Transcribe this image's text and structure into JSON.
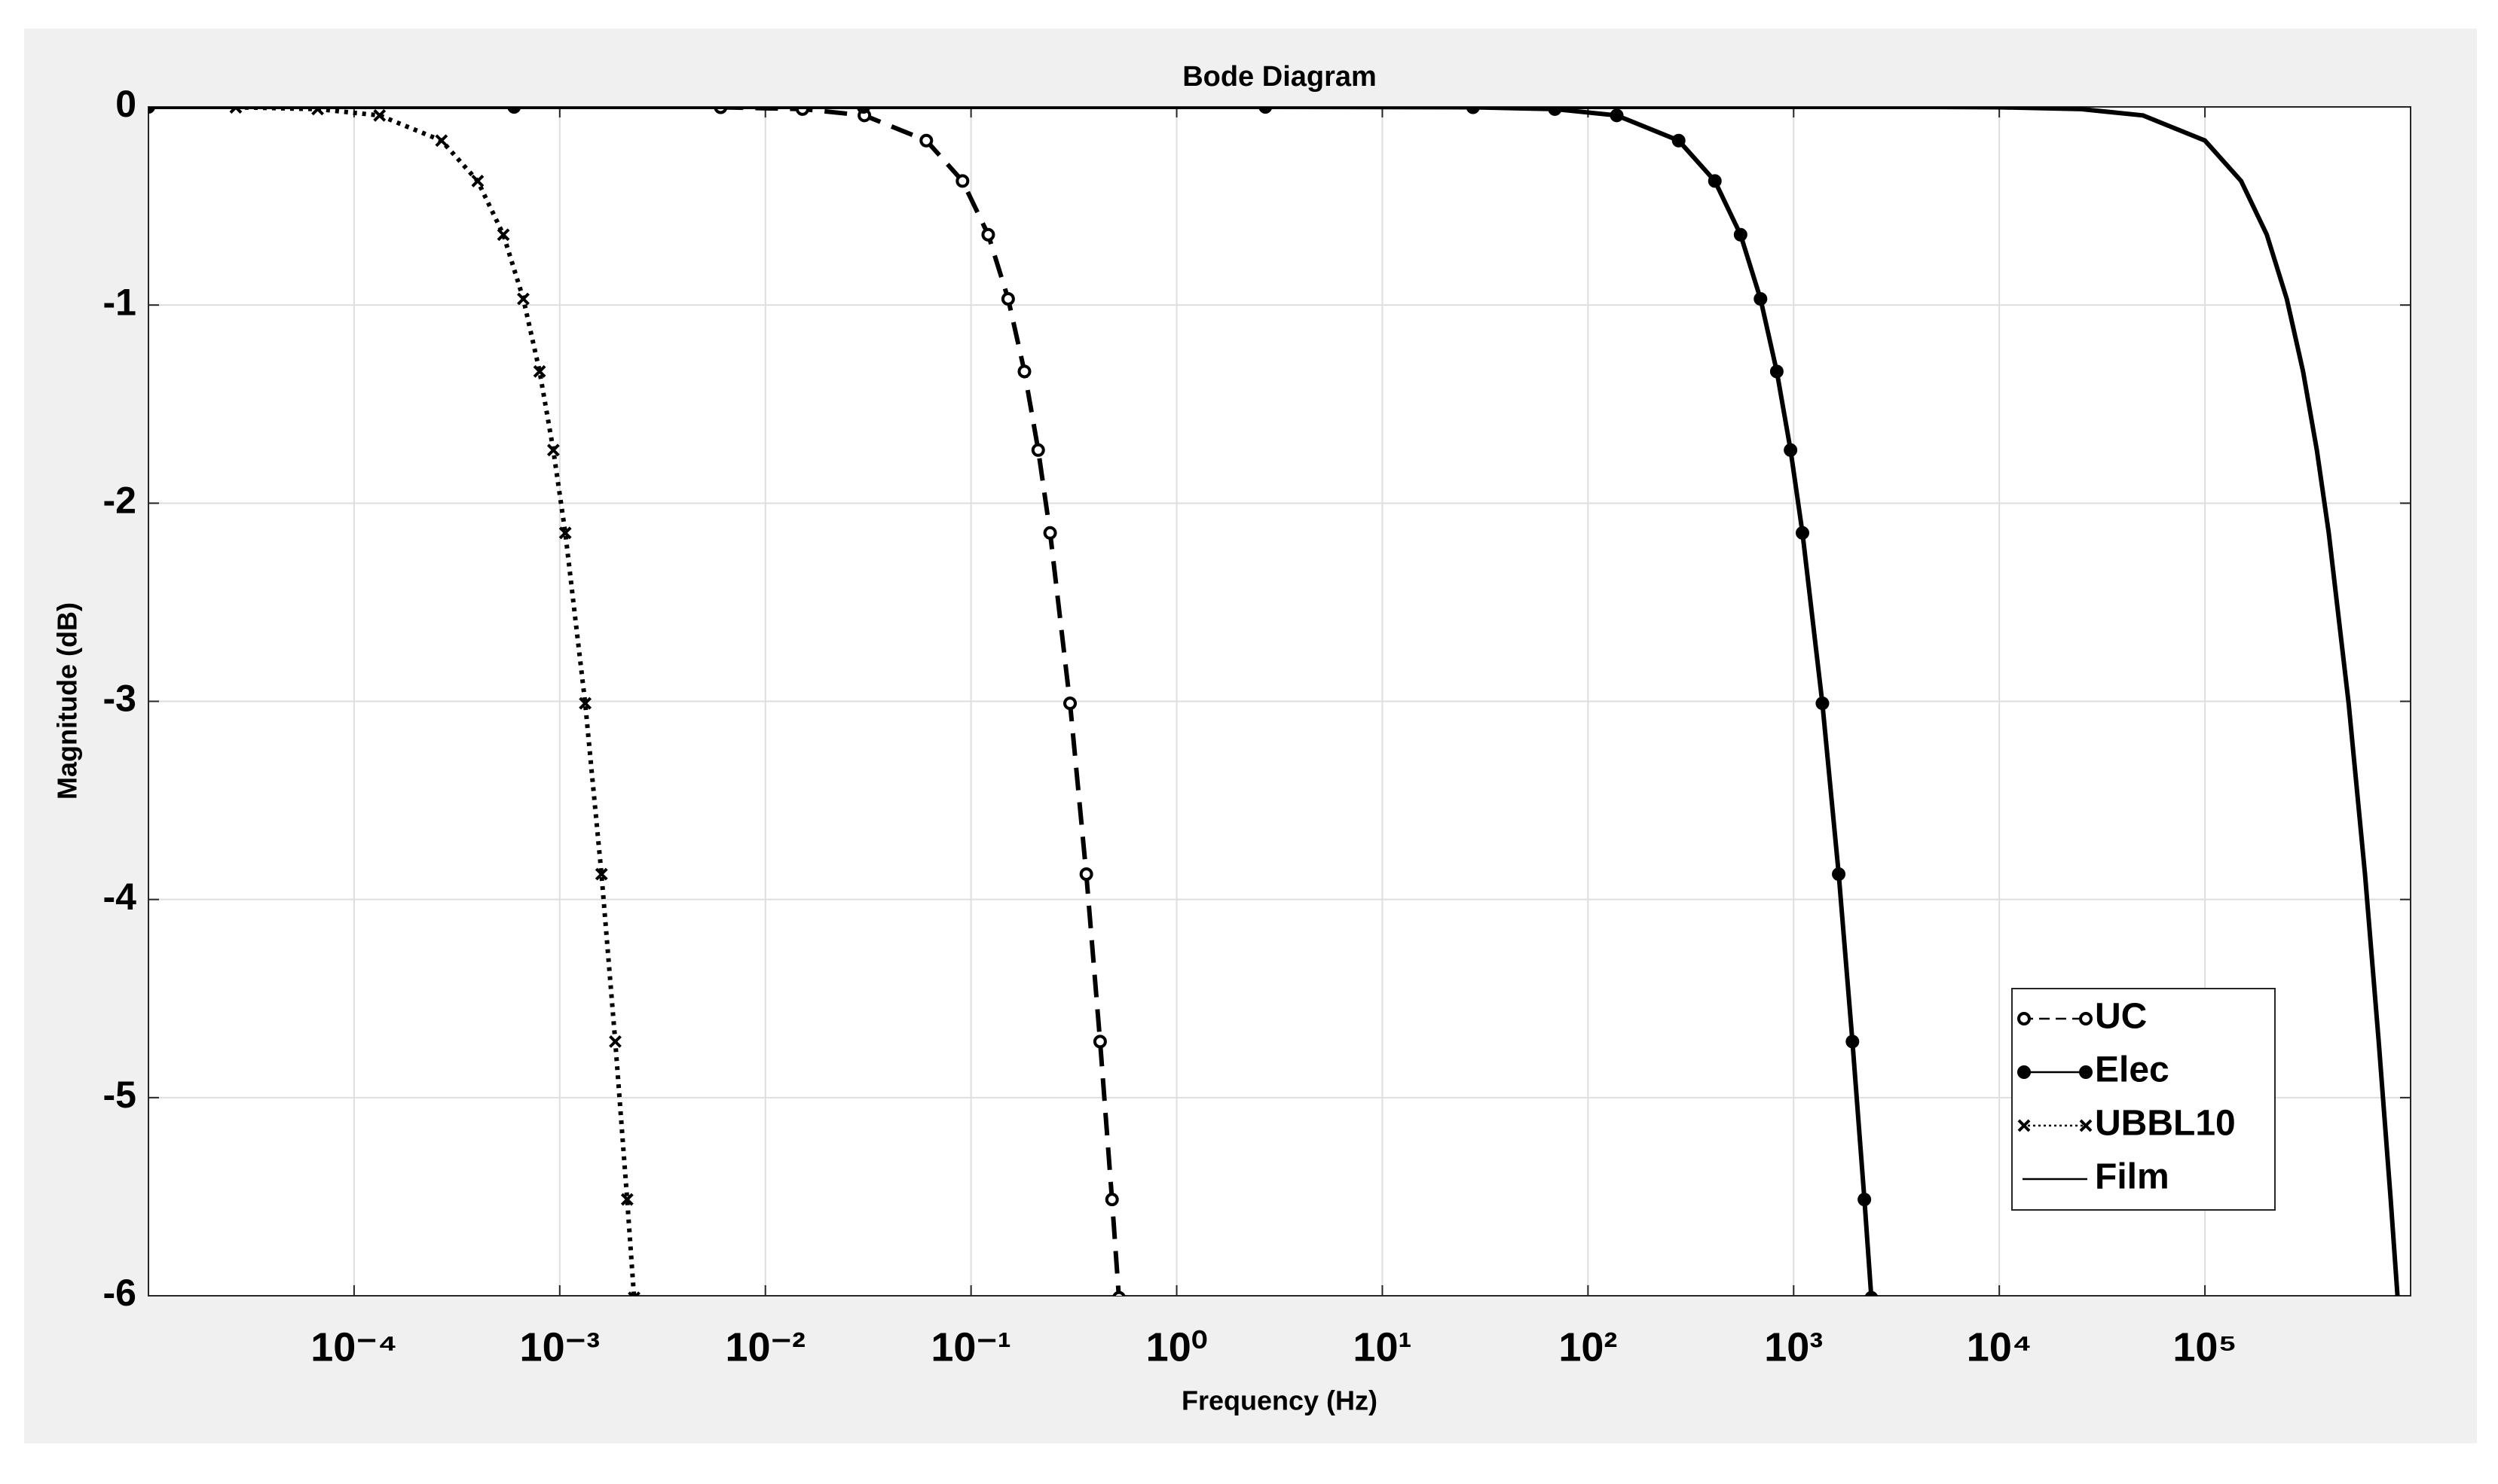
{
  "chart_data": {
    "type": "line",
    "title": "Bode Diagram",
    "x_label": "Frequency  (Hz)",
    "y_label": "Magnitude (dB)",
    "x_scale": "log",
    "xlim": [
      1e-05,
      1000000
    ],
    "ylim": [
      -6,
      0
    ],
    "xticks": [
      {
        "value": 0.0001,
        "label": "10⁻⁴"
      },
      {
        "value": 0.001,
        "label": "10⁻³"
      },
      {
        "value": 0.01,
        "label": "10⁻²"
      },
      {
        "value": 0.1,
        "label": "10⁻¹"
      },
      {
        "value": 1,
        "label": "10⁰"
      },
      {
        "value": 10,
        "label": "10¹"
      },
      {
        "value": 100,
        "label": "10²"
      },
      {
        "value": 1000,
        "label": "10³"
      },
      {
        "value": 10000,
        "label": "10⁴"
      },
      {
        "value": 100000,
        "label": "10⁵"
      }
    ],
    "yticks": [
      -6,
      -5,
      -4,
      -3,
      -2,
      -1,
      0
    ],
    "grid": true,
    "legend": "lower right",
    "series": [
      {
        "name": "UC",
        "color": "#000000",
        "line_style": "dashed",
        "marker": "circle",
        "x": [
          0.00606,
          0.01515,
          0.0303,
          0.0606,
          0.0909,
          0.1212,
          0.1515,
          0.1818,
          0.2121,
          0.2424,
          0.303,
          0.3636,
          0.4242,
          0.4848,
          0.524
        ],
        "values": [
          -0.002,
          -0.011,
          -0.043,
          -0.17,
          -0.374,
          -0.645,
          -0.969,
          -1.335,
          -1.732,
          -2.15,
          -3.01,
          -3.872,
          -4.717,
          -5.514,
          -6.01
        ]
      },
      {
        "name": "Elec",
        "color": "#000000",
        "line_style": "solid",
        "marker": "dot",
        "x": [
          1e-05,
          0.0006,
          0.03,
          2.7,
          27.6,
          69,
          138,
          276,
          414,
          552,
          690,
          828,
          966,
          1104,
          1380,
          1656,
          1932,
          2208,
          2387
        ],
        "values": [
          0,
          0,
          0,
          0,
          -0.002,
          -0.011,
          -0.043,
          -0.17,
          -0.374,
          -0.645,
          -0.969,
          -1.335,
          -1.732,
          -2.15,
          -3.01,
          -3.872,
          -4.717,
          -5.514,
          -6.01
        ]
      },
      {
        "name": "UBBL10",
        "color": "#000000",
        "line_style": "dotted",
        "marker": "x",
        "x": [
          2.66e-05,
          6.65e-05,
          0.000133,
          0.000266,
          0.000399,
          0.000532,
          0.000665,
          0.000798,
          0.000931,
          0.001064,
          0.00133,
          0.001596,
          0.001862,
          0.002128,
          0.0023
        ],
        "values": [
          -0.002,
          -0.011,
          -0.043,
          -0.17,
          -0.374,
          -0.645,
          -0.969,
          -1.335,
          -1.732,
          -2.15,
          -3.01,
          -3.872,
          -4.717,
          -5.514,
          -6.01
        ]
      },
      {
        "name": "Film",
        "color": "#000000",
        "line_style": "solid",
        "marker": "none",
        "x": [
          1e-05,
          5000,
          10000,
          25000,
          50000,
          100000,
          150000,
          200000,
          250000,
          300000,
          350000,
          400000,
          500000,
          600000,
          700000,
          800000,
          865000
        ],
        "values": [
          0,
          0,
          -0.002,
          -0.011,
          -0.043,
          -0.17,
          -0.374,
          -0.645,
          -0.969,
          -1.335,
          -1.732,
          -2.15,
          -3.01,
          -3.872,
          -4.717,
          -5.514,
          -6.01
        ]
      }
    ]
  }
}
